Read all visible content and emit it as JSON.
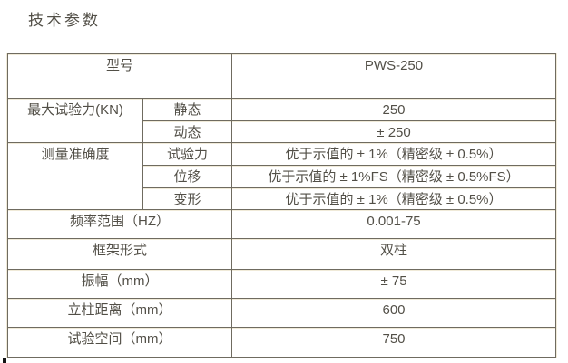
{
  "page": {
    "title": "技术参数"
  },
  "table": {
    "model": {
      "label": "型号",
      "value": "PWS-250"
    },
    "max_force": {
      "label": "最大试验力(KN)",
      "static": {
        "label": "静态",
        "value": "250"
      },
      "dynamic": {
        "label": "动态",
        "value": "± 250"
      }
    },
    "accuracy": {
      "label": "测量准确度",
      "force": {
        "label": "试验力",
        "value": "优于示值的 ± 1%（精密级 ± 0.5%）"
      },
      "displacement": {
        "label": "位移",
        "value": "优于示值的 ± 1%FS（精密级 ± 0.5%FS）"
      },
      "deformation": {
        "label": "变形",
        "value": "优于示值的 ± 1%（精密级 ± 0.5%）"
      }
    },
    "frequency": {
      "label": "频率范围（HZ）",
      "value": "0.001-75"
    },
    "frame": {
      "label": "框架形式",
      "value": "双柱"
    },
    "amplitude": {
      "label": "振幅（mm）",
      "value": "± 75"
    },
    "column_distance": {
      "label": "立柱距离（mm）",
      "value": "600"
    },
    "test_space": {
      "label": "试验空间（mm）",
      "value": "750"
    }
  },
  "colors": {
    "grid_dark": "#6f6b60",
    "grid_light": "#f0ead8",
    "text": "#524f47",
    "background": "#ffffff"
  }
}
